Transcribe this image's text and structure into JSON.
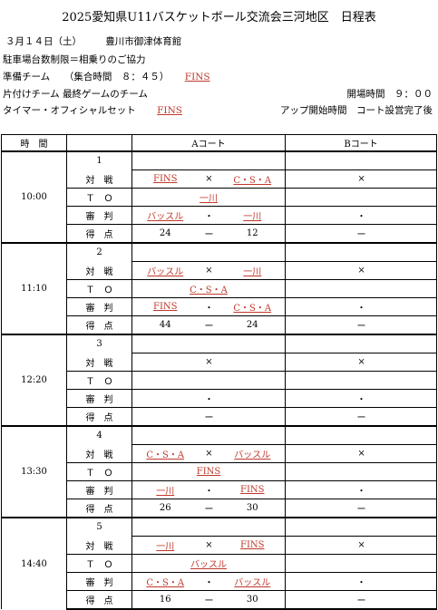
{
  "title": "2025愛知県U11バスケットボール交流会三河地区　日程表",
  "info": {
    "date_venue": "３月１４日（土）　　　豊川市御津体育館",
    "parking": "駐車場台数制限＝相乗りのご協力",
    "prep_label": "準備チーム　　（集合時間　８：４５）",
    "prep_team": "FINS",
    "cleanup": "片付けチーム 最終ゲームのチーム",
    "opening": "開場時間　９：００",
    "timer_label": "タイマー・オフィシャルセット",
    "timer_team": "FINS",
    "warmup": "アップ開始時間　コート設営完了後"
  },
  "headers": {
    "time": "時　間",
    "court_a": "Aコート",
    "court_b": "Bコート"
  },
  "labels": {
    "match": "対　戦",
    "to": "Ｔ　Ｏ",
    "ref": "審　判",
    "score": "得　点"
  },
  "marks": {
    "vs": "×",
    "dot": "・",
    "dash": "ー"
  },
  "games": [
    {
      "no": "1",
      "time": "10:00",
      "a_team1": "FINS",
      "a_team2": "C・S・A",
      "a_to": "一川",
      "a_ref1": "バッスル",
      "a_ref2": "一川",
      "a_score1": "24",
      "a_score2": "12"
    },
    {
      "no": "2",
      "time": "11:10",
      "a_team1": "バッスル",
      "a_team2": "一川",
      "a_to": "C・S・A",
      "a_ref1": "FINS",
      "a_ref2": "C・S・A",
      "a_score1": "44",
      "a_score2": "24"
    },
    {
      "no": "3",
      "time": "12:20",
      "a_team1": "",
      "a_team2": "",
      "a_to": "",
      "a_ref1": "",
      "a_ref2": "",
      "a_score1": "",
      "a_score2": ""
    },
    {
      "no": "4",
      "time": "13:30",
      "a_team1": "C・S・A",
      "a_team2": "バッスル",
      "a_to": "FINS",
      "a_ref1": "一川",
      "a_ref2": "FINS",
      "a_score1": "26",
      "a_score2": "30"
    },
    {
      "no": "5",
      "time": "14:40",
      "a_team1": "一川",
      "a_team2": "FINS",
      "a_to": "バッスル",
      "a_ref1": "C・S・A",
      "a_ref2": "バッスル",
      "a_score1": "16",
      "a_score2": "30"
    }
  ]
}
